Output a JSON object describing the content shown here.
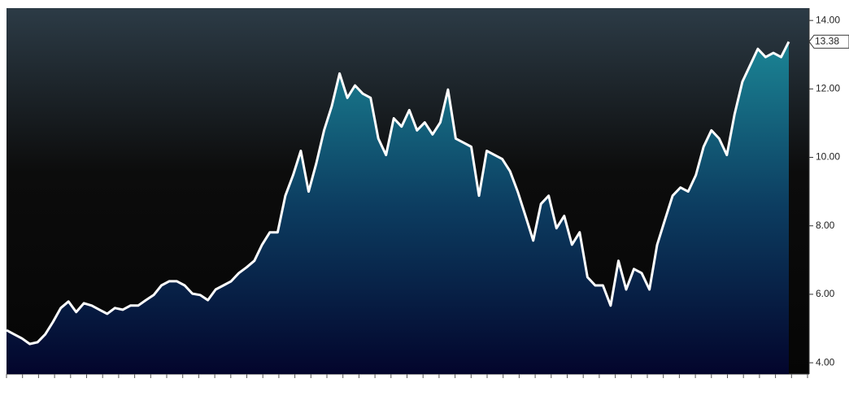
{
  "chart_data": {
    "type": "area",
    "values": [
      4.95,
      4.83,
      4.71,
      4.55,
      4.6,
      4.83,
      5.19,
      5.6,
      5.79,
      5.48,
      5.74,
      5.67,
      5.55,
      5.43,
      5.6,
      5.55,
      5.67,
      5.67,
      5.83,
      5.98,
      6.26,
      6.38,
      6.38,
      6.26,
      6.02,
      5.98,
      5.83,
      6.14,
      6.26,
      6.38,
      6.62,
      6.79,
      6.98,
      7.45,
      7.81,
      7.81,
      8.88,
      9.48,
      10.19,
      9.0,
      9.83,
      10.79,
      11.5,
      12.45,
      11.74,
      12.1,
      11.86,
      11.74,
      10.55,
      10.07,
      11.14,
      10.9,
      11.38,
      10.79,
      11.02,
      10.67,
      11.02,
      11.98,
      10.55,
      10.43,
      10.31,
      8.88,
      10.19,
      10.07,
      9.95,
      9.6,
      9.0,
      8.29,
      7.57,
      8.64,
      8.88,
      7.93,
      8.29,
      7.45,
      7.81,
      6.5,
      6.26,
      6.26,
      5.67,
      6.98,
      6.14,
      6.74,
      6.62,
      6.14,
      7.45,
      8.17,
      8.88,
      9.12,
      9.0,
      9.48,
      10.31,
      10.79,
      10.55,
      10.07,
      11.26,
      12.21,
      12.69,
      13.17,
      12.93,
      13.05,
      12.93,
      13.38
    ],
    "color": "#ffffff",
    "ylim": [
      3.67,
      14.36
    ],
    "yticks": [
      {
        "value": 4,
        "label": "4.00"
      },
      {
        "value": 6,
        "label": "6.00"
      },
      {
        "value": 8,
        "label": "8.00"
      },
      {
        "value": 10,
        "label": "10.00"
      },
      {
        "value": 12,
        "label": "12.00"
      },
      {
        "value": 14,
        "label": "14.00"
      }
    ]
  }
}
